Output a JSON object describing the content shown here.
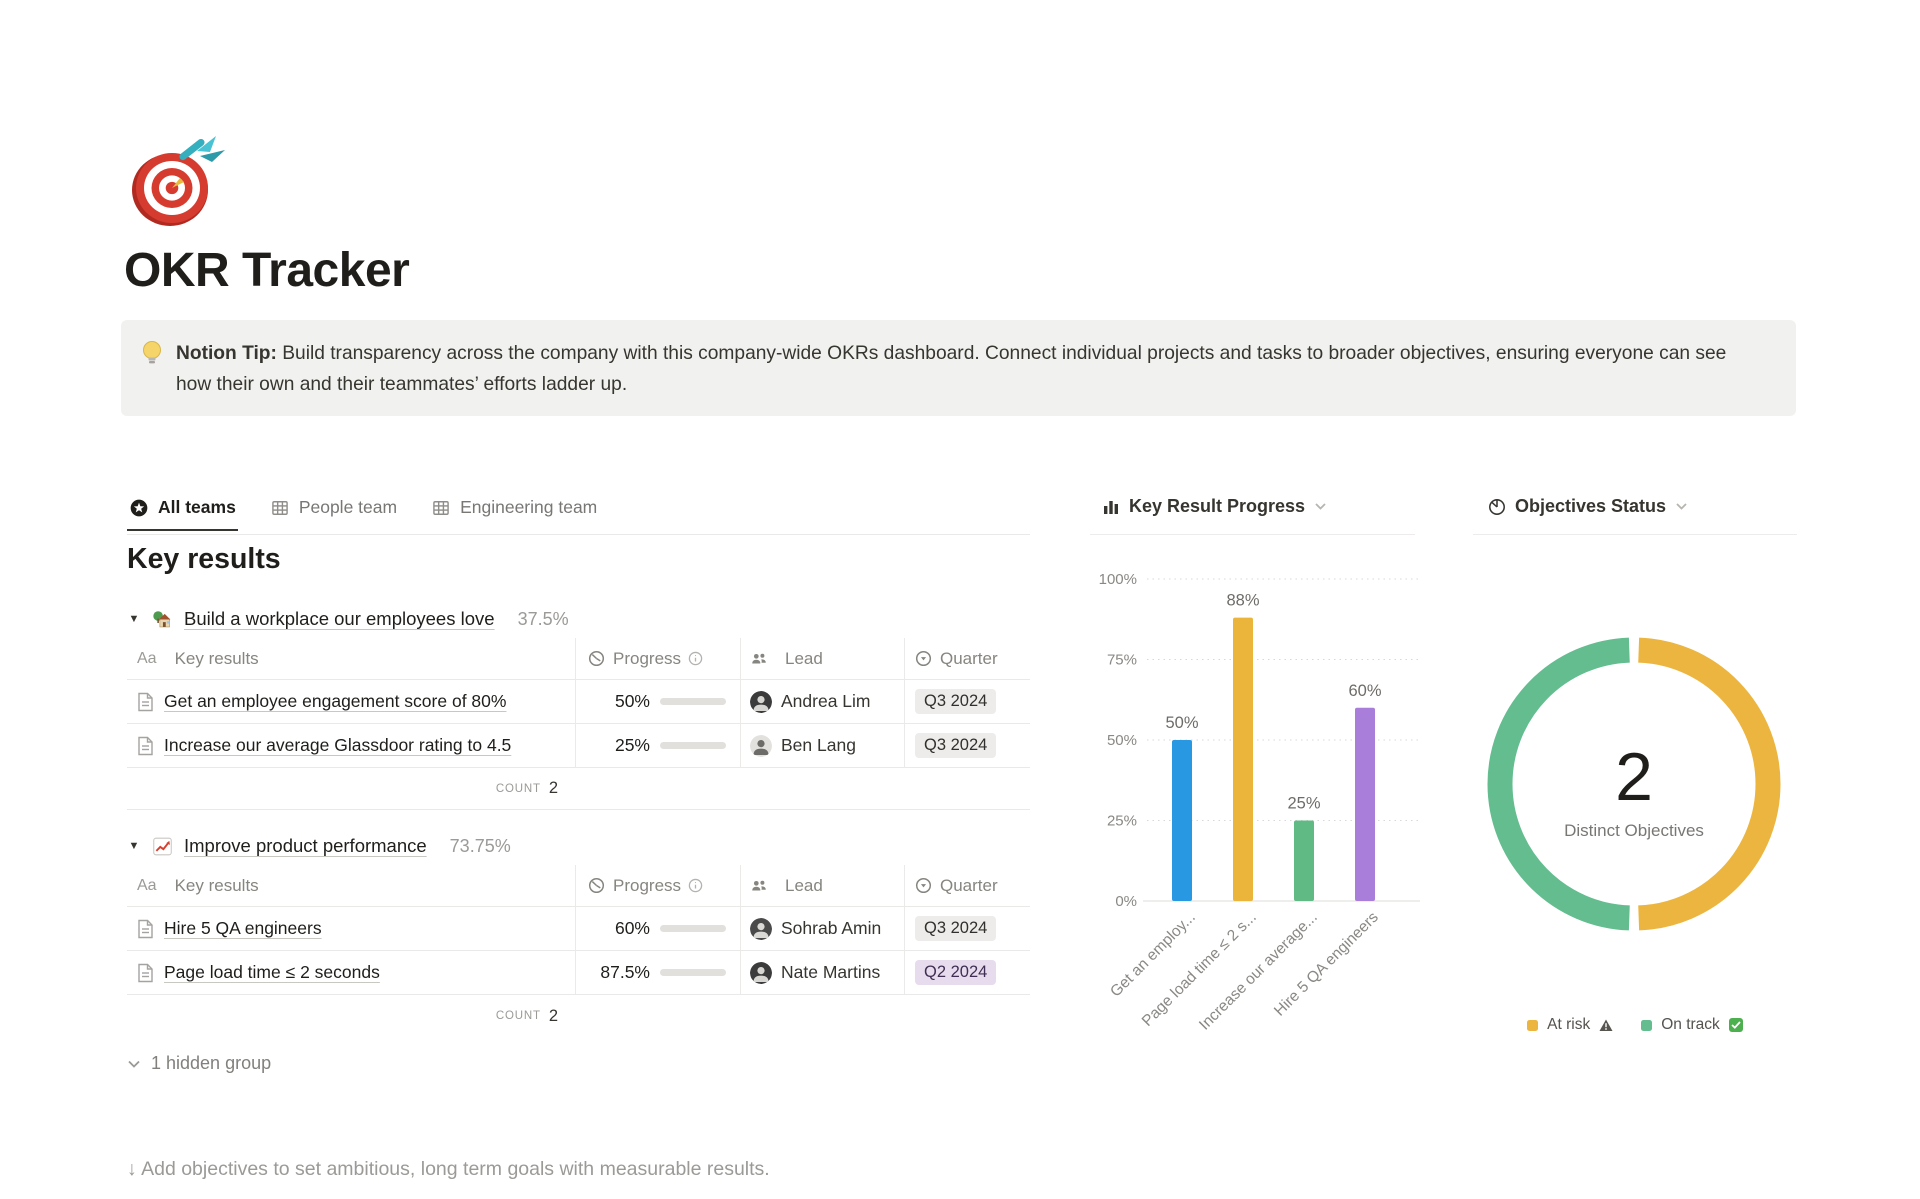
{
  "page": {
    "title": "OKR Tracker",
    "callout": {
      "bold_prefix": "Notion Tip:",
      "text": " Build transparency across the company with this company-wide OKRs dashboard. Connect individual projects and tasks to broader objectives, ensuring everyone can see how their own and their teammates’ efforts ladder up."
    },
    "hint": "↓ Add objectives to set ambitious, long term goals with measurable results."
  },
  "tabs": [
    {
      "label": "All teams",
      "icon": "star-circle-icon",
      "active": true
    },
    {
      "label": "People team",
      "icon": "table-icon",
      "active": false
    },
    {
      "label": "Engineering team",
      "icon": "table-icon",
      "active": false
    }
  ],
  "key_results": {
    "heading": "Key results",
    "columns": {
      "name_icon": "Aa",
      "name": "Key results",
      "progress": "Progress",
      "lead": "Lead",
      "quarter": "Quarter"
    },
    "count_label": "COUNT",
    "hidden_group": "1 hidden group",
    "groups": [
      {
        "emoji": "house-with-garden",
        "title": "Build a workplace our employees love",
        "percent": "37.5%",
        "count": "2",
        "rows": [
          {
            "name": "Get an employee engagement score of 80%",
            "progress": "50%",
            "progress_value": 50,
            "lead": "Andrea Lim",
            "quarter": "Q3 2024",
            "quarter_color": "gray"
          },
          {
            "name": "Increase our average Glassdoor rating to 4.5",
            "progress": "25%",
            "progress_value": 25,
            "lead": "Ben Lang",
            "quarter": "Q3 2024",
            "quarter_color": "gray"
          }
        ]
      },
      {
        "emoji": "chart-increasing",
        "title": "Improve product performance",
        "percent": "73.75%",
        "count": "2",
        "rows": [
          {
            "name": "Hire 5 QA engineers",
            "progress": "60%",
            "progress_value": 60,
            "lead": "Sohrab Amin",
            "quarter": "Q3 2024",
            "quarter_color": "gray"
          },
          {
            "name": "Page load time ≤ 2 seconds",
            "progress": "87.5%",
            "progress_value": 87.5,
            "lead": "Nate Martins",
            "quarter": "Q2 2024",
            "quarter_color": "purple"
          }
        ]
      }
    ]
  },
  "chart_data": [
    {
      "type": "bar",
      "title": "Key Result Progress",
      "categories": [
        "Get an employ...",
        "Page load time ≤ 2 s...",
        "Increase our average...",
        "Hire 5 QA engineers"
      ],
      "values": [
        50,
        88,
        25,
        60
      ],
      "value_labels": [
        "50%",
        "88%",
        "25%",
        "60%"
      ],
      "colors": [
        "#2998E3",
        "#EBB53C",
        "#5FBA83",
        "#A97EDB"
      ],
      "xlabel": "",
      "ylabel": "",
      "ylim": [
        0,
        100
      ],
      "yticks": [
        0,
        25,
        50,
        75,
        100
      ],
      "ytick_labels": [
        "0%",
        "25%",
        "50%",
        "75%",
        "100%"
      ],
      "grid": "dotted-horizontal",
      "legend_position": "none"
    },
    {
      "type": "donut",
      "title": "Objectives Status",
      "center_value": "2",
      "center_label": "Distinct Objectives",
      "slices": [
        {
          "label": "At risk",
          "value": 1,
          "color": "#ECB53F"
        },
        {
          "label": "On track",
          "value": 1,
          "color": "#63BD8F"
        }
      ],
      "legend": [
        {
          "label": "At risk",
          "suffix_icon": "warning",
          "color": "#ECB53F"
        },
        {
          "label": "On track",
          "suffix_icon": "check",
          "color": "#63BD8F"
        }
      ],
      "legend_position": "bottom"
    }
  ]
}
